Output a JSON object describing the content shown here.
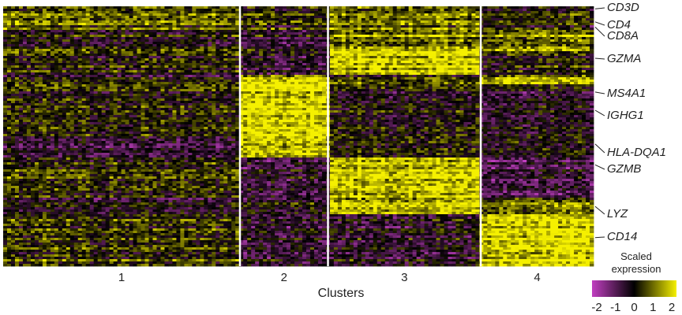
{
  "chart_data": {
    "type": "heatmap",
    "title": "",
    "xlabel": "Clusters",
    "ylabel": "",
    "clusters": [
      {
        "name": "1",
        "relative_width": 2.96
      },
      {
        "name": "2",
        "relative_width": 1.1
      },
      {
        "name": "3",
        "relative_width": 1.91
      },
      {
        "name": "4",
        "relative_width": 1.41
      }
    ],
    "gene_blocks": [
      {
        "start": 0.0,
        "end": 0.09,
        "levels": [
          0.6,
          0.2,
          0.8,
          0.0
        ]
      },
      {
        "start": 0.09,
        "end": 0.17,
        "levels": [
          0.1,
          -0.2,
          1.2,
          1.0
        ]
      },
      {
        "start": 0.17,
        "end": 0.26,
        "levels": [
          0.2,
          -0.3,
          1.8,
          0.1
        ]
      },
      {
        "start": 0.26,
        "end": 0.3,
        "levels": [
          -0.1,
          1.5,
          0.4,
          1.2
        ]
      },
      {
        "start": 0.3,
        "end": 0.5,
        "levels": [
          0.2,
          1.9,
          0.0,
          -0.3
        ]
      },
      {
        "start": 0.5,
        "end": 0.58,
        "levels": [
          -0.4,
          1.7,
          0.3,
          0.0
        ]
      },
      {
        "start": 0.58,
        "end": 0.74,
        "levels": [
          0.3,
          -0.4,
          1.7,
          -0.7
        ]
      },
      {
        "start": 0.74,
        "end": 0.8,
        "levels": [
          -0.2,
          0.0,
          1.6,
          0.8
        ]
      },
      {
        "start": 0.8,
        "end": 1.0,
        "levels": [
          0.4,
          -0.3,
          -0.2,
          1.8
        ]
      }
    ],
    "genes": [
      {
        "name": "CD3D",
        "row": 0.01
      },
      {
        "name": "CD4",
        "row": 0.06
      },
      {
        "name": "CD8A",
        "row": 0.08
      },
      {
        "name": "GZMA",
        "row": 0.2
      },
      {
        "name": "MS4A1",
        "row": 0.33
      },
      {
        "name": "IGHG1",
        "row": 0.4
      },
      {
        "name": "HLA-DQA1",
        "row": 0.53
      },
      {
        "name": "GZMB",
        "row": 0.61
      },
      {
        "name": "LYZ",
        "row": 0.77
      },
      {
        "name": "CD14",
        "row": 0.89
      }
    ],
    "colorbar": {
      "title": "Scaled expression",
      "title_lines": [
        "Scaled",
        "expression"
      ],
      "range": [
        -2,
        2
      ],
      "ticks": [
        "-2",
        "-1",
        "0",
        "1",
        "2"
      ],
      "colors": [
        "#c13fc1",
        "#000000",
        "#f5f000"
      ]
    }
  }
}
